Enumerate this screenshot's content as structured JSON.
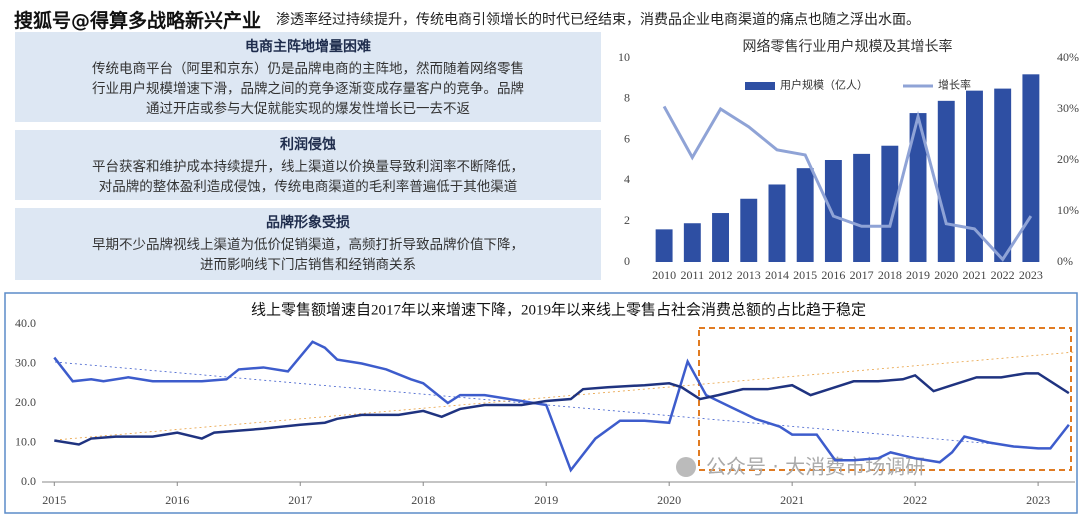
{
  "header": {
    "watermark": "搜狐号@得算多战略新兴产业",
    "text": "渗透率经过持续提升，传统电商引领增长的时代已经结束，消费品企业电商渠道的痛点也随之浮出水面。"
  },
  "panels": [
    {
      "title": "电商主阵地增量困难",
      "body": [
        "传统电商平台（阿里和京东）仍是品牌电商的主阵地，然而随着网络零售",
        "行业用户规模增速下滑，品牌之间的竞争逐渐变成存量客户的竞争。品牌",
        "通过开店或参与大促就能实现的爆发性增长已一去不返"
      ]
    },
    {
      "title": "利润侵蚀",
      "body": [
        "平台获客和维护成本持续提升，线上渠道以价换量导致利润率不断降低，",
        "对品牌的整体盈利造成侵蚀，传统电商渠道的毛利率普遍低于其他渠道"
      ]
    },
    {
      "title": "品牌形象受损",
      "body": [
        "早期不少品牌视线上渠道为低价促销渠道，高频打折导致品牌价值下降，",
        "进而影响线下门店销售和经销商关系"
      ]
    }
  ],
  "chart_data": [
    {
      "type": "bar",
      "title": "网络零售行业用户规模及其增长率",
      "categories": [
        "2010",
        "2011",
        "2012",
        "2013",
        "2014",
        "2015",
        "2016",
        "2017",
        "2018",
        "2019",
        "2020",
        "2021",
        "2022",
        "2023"
      ],
      "series": [
        {
          "name": "用户规模（亿人）",
          "color": "#2e4fa3",
          "values": [
            1.6,
            1.9,
            2.4,
            3.1,
            3.8,
            4.6,
            5.0,
            5.3,
            5.7,
            7.3,
            7.9,
            8.4,
            8.5,
            9.2
          ]
        },
        {
          "name": "增长率",
          "color": "#8fa3d6",
          "type": "line",
          "axis": "y2",
          "values": [
            30.5,
            20.5,
            30,
            26.5,
            22,
            21,
            9,
            7,
            7,
            28.5,
            7.5,
            6.5,
            0.5,
            9
          ]
        }
      ],
      "ylim": [
        0,
        10
      ],
      "yticks": [
        0,
        2,
        4,
        6,
        8,
        10
      ],
      "y2lim": [
        0,
        40
      ],
      "y2ticks": [
        {
          "value": 0,
          "label": "0%"
        },
        {
          "value": 10,
          "label": "10%"
        },
        {
          "value": 20,
          "label": "20%"
        },
        {
          "value": 30,
          "label": "30%"
        },
        {
          "value": 40,
          "label": "40%"
        }
      ],
      "grid": false
    },
    {
      "type": "line",
      "title": "线上零售额增速自2017年以来增速下降，2019年以来线上零售占社会消费总额的占比趋于稳定",
      "series": [
        {
          "color": "#3d5ccc",
          "x": [
            2015.0,
            2015.15,
            2015.3,
            2015.4,
            2015.6,
            2015.8,
            2016.0,
            2016.2,
            2016.4,
            2016.5,
            2016.7,
            2016.9,
            2017.1,
            2017.2,
            2017.3,
            2017.5,
            2017.7,
            2017.9,
            2018.0,
            2018.2,
            2018.3,
            2018.5,
            2018.7,
            2018.9,
            2019.0,
            2019.2,
            2019.4,
            2019.6,
            2019.8,
            2020.0,
            2020.15,
            2020.3,
            2020.5,
            2020.7,
            2020.9,
            2021.0,
            2021.2,
            2021.35,
            2021.5,
            2021.7,
            2021.8,
            2022.0,
            2022.2,
            2022.3,
            2022.4,
            2022.6,
            2022.8,
            2023.0,
            2023.1,
            2023.25
          ],
          "values": [
            31.5,
            25.5,
            26,
            25.5,
            26.5,
            25.5,
            25.5,
            25.5,
            26,
            28.5,
            29,
            28,
            35.5,
            34,
            31,
            30,
            28.5,
            26,
            25,
            20,
            22,
            22,
            21,
            20,
            19.5,
            3,
            11,
            15.5,
            15.5,
            15,
            30.5,
            22,
            19,
            16,
            14,
            12,
            12,
            5.5,
            5.5,
            6,
            7.5,
            6,
            5,
            7.5,
            11.5,
            10,
            9,
            8.5,
            8.5,
            14.5
          ]
        },
        {
          "color": "#1f3380",
          "x": [
            2015.0,
            2015.2,
            2015.3,
            2015.5,
            2015.8,
            2016.0,
            2016.2,
            2016.3,
            2016.5,
            2016.7,
            2017.0,
            2017.2,
            2017.3,
            2017.5,
            2017.8,
            2018.0,
            2018.15,
            2018.3,
            2018.5,
            2018.8,
            2019.0,
            2019.2,
            2019.3,
            2019.5,
            2019.8,
            2020.0,
            2020.1,
            2020.25,
            2020.4,
            2020.6,
            2020.8,
            2021.0,
            2021.15,
            2021.3,
            2021.5,
            2021.7,
            2021.9,
            2022.0,
            2022.15,
            2022.3,
            2022.5,
            2022.7,
            2022.9,
            2023.0,
            2023.25
          ],
          "values": [
            10.5,
            9.5,
            11,
            11.5,
            11.5,
            12.5,
            11,
            12.5,
            13,
            13.5,
            14.5,
            15,
            16,
            17,
            17,
            18,
            16.5,
            18.5,
            19.5,
            19.5,
            20.5,
            21,
            23.5,
            24,
            24.5,
            25,
            24,
            21,
            22,
            23.5,
            23.5,
            24.5,
            22,
            23.5,
            25.5,
            25.5,
            26,
            27,
            23,
            24.5,
            26.5,
            26.5,
            27.5,
            27.5,
            22.5
          ]
        }
      ],
      "xlim": [
        2014.9,
        2023.3
      ],
      "xticks": [
        2015,
        2016,
        2017,
        2018,
        2019,
        2020,
        2021,
        2022,
        2023
      ],
      "ylim": [
        0,
        40
      ],
      "yticks": [
        {
          "value": 0,
          "label": "0.0"
        },
        {
          "value": 10,
          "label": "10.0"
        },
        {
          "value": 20,
          "label": "20.0"
        },
        {
          "value": 30,
          "label": "30.0"
        },
        {
          "value": 40,
          "label": "40.0"
        }
      ],
      "grid": false
    }
  ],
  "source_watermark": "公众号 · 大消费市场调研"
}
